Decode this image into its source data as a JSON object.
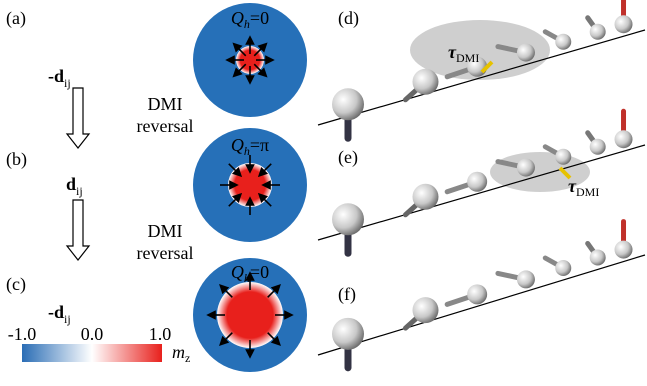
{
  "panels_left": [
    {
      "label": "(a)",
      "d_symbol": "-d",
      "d_sub": "ij",
      "q_symbol": "Q",
      "q_sub": "h",
      "q_value": "=0"
    },
    {
      "label": "(b)",
      "d_symbol": "d",
      "d_sub": "ij",
      "q_symbol": "Q",
      "q_sub": "h",
      "q_value": "=π"
    },
    {
      "label": "(c)",
      "d_symbol": "-d",
      "d_sub": "ij",
      "q_symbol": "Q",
      "q_sub": "h",
      "q_value": "=0"
    }
  ],
  "reversal_labels": [
    {
      "line1": "DMI",
      "line2": "reversal"
    },
    {
      "line1": "DMI",
      "line2": "reversal"
    }
  ],
  "colorbar": {
    "ticks": [
      "-1.0",
      "0.0",
      "1.0"
    ],
    "label_symbol": "m",
    "label_sub": "z"
  },
  "panels_right": [
    {
      "label": "(d)",
      "torque_symbol": "τ",
      "torque_sub": "DMI"
    },
    {
      "label": "(e)",
      "torque_symbol": "τ",
      "torque_sub": "DMI"
    },
    {
      "label": "(f)"
    }
  ]
}
